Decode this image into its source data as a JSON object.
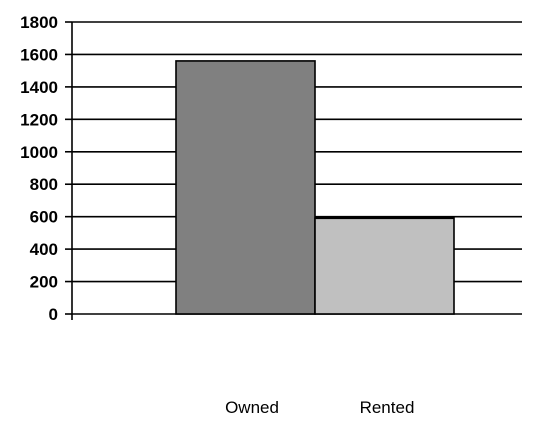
{
  "chart_data": {
    "type": "bar",
    "title": "",
    "xlabel": "",
    "ylabel": "",
    "ylim": [
      0,
      1800
    ],
    "yticks": [
      0,
      200,
      400,
      600,
      800,
      1000,
      1200,
      1400,
      1600,
      1800
    ],
    "grid": true,
    "legend_position": "bottom",
    "series": [
      {
        "name": "Owned",
        "values": [
          1560
        ],
        "color": "#808080"
      },
      {
        "name": "Rented",
        "values": [
          590
        ],
        "color": "#c0c0c0"
      }
    ]
  }
}
